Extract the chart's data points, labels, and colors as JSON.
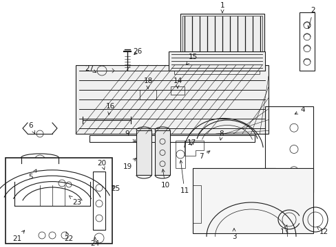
{
  "background_color": "#ffffff",
  "fig_width": 4.89,
  "fig_height": 3.6,
  "dpi": 100,
  "line_color": "#1a1a1a",
  "text_color": "#1a1a1a",
  "part_fontsize": 7.5
}
